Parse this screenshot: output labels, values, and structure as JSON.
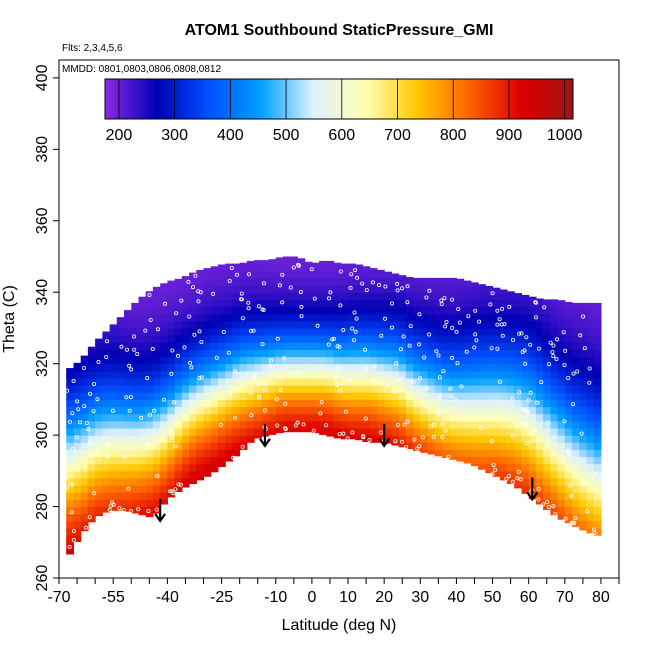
{
  "chart_data": {
    "type": "heatmap",
    "title": "ATOM1 Southbound StaticPressure_GMI",
    "annotations": {
      "flights": "Flts: 2,3,4,5,6",
      "dates": "MMDD: 0801,0803,0806,0808,0812"
    },
    "xlabel": "Latitude (deg N)",
    "ylabel": "Theta (C)",
    "xlim": [
      -70,
      85
    ],
    "ylim": [
      260,
      405
    ],
    "x_tick_labels": [
      "-70",
      "-55",
      "-40",
      "-25",
      "-10",
      "0",
      "10",
      "20",
      "30",
      "40",
      "50",
      "60",
      "70",
      "80"
    ],
    "x_ticks": [
      -70,
      -55,
      -40,
      -25,
      -10,
      0,
      10,
      20,
      30,
      40,
      50,
      60,
      70,
      80
    ],
    "y_ticks": [
      260,
      280,
      300,
      320,
      340,
      360,
      380,
      400
    ],
    "y_tick_labels": [
      "260",
      "280",
      "300",
      "320",
      "340",
      "360",
      "380",
      "400"
    ],
    "colorbar": {
      "min": 175,
      "max": 1015,
      "ticks": [
        200,
        300,
        400,
        500,
        600,
        700,
        800,
        900,
        1000
      ],
      "tick_labels": [
        "200",
        "300",
        "400",
        "500",
        "600",
        "700",
        "800",
        "900",
        "1000"
      ],
      "colors": [
        "#8a2be2",
        "#0000b4",
        "#0050ff",
        "#00a0ff",
        "#dcf0ff",
        "#ffffb4",
        "#ffc800",
        "#ff6400",
        "#dc0000",
        "#a01414"
      ]
    },
    "profile": {
      "latitude": [
        -68,
        -64,
        -60,
        -56,
        -52,
        -48,
        -44,
        -40,
        -36,
        -32,
        -28,
        -24,
        -20,
        -16,
        -12,
        -8,
        -4,
        0,
        4,
        8,
        12,
        16,
        20,
        24,
        28,
        32,
        36,
        40,
        44,
        48,
        52,
        56,
        60,
        64,
        68,
        72,
        76,
        79
      ],
      "theta_bottom": [
        265,
        272,
        277,
        279,
        279,
        278,
        277,
        282,
        285,
        287,
        289,
        292,
        295,
        299,
        300,
        301,
        301,
        301,
        300,
        299,
        299,
        298,
        298,
        297,
        296,
        295,
        294,
        293,
        292,
        290,
        288,
        286,
        283,
        280,
        277,
        275,
        273,
        272
      ],
      "theta_top": [
        318,
        321,
        326,
        330,
        334,
        338,
        341,
        343,
        344,
        346,
        347,
        348,
        348,
        349,
        349,
        350,
        350,
        348,
        349,
        348,
        348,
        347,
        346,
        345,
        344,
        344,
        344,
        344,
        343,
        342,
        341,
        340,
        339,
        338,
        338,
        337,
        337,
        337
      ],
      "theta_mid": [
        292,
        294,
        297,
        298,
        298,
        298,
        299,
        302,
        306,
        309,
        311,
        313,
        315,
        316,
        317,
        318,
        318,
        318,
        318,
        317,
        317,
        317,
        316,
        315,
        312,
        310,
        308,
        307,
        307,
        307,
        307,
        306,
        304,
        300,
        296,
        292,
        289,
        287
      ],
      "half_width": [
        30,
        30,
        29,
        29,
        28,
        27,
        27,
        26,
        25,
        24,
        24,
        23,
        23,
        22,
        21,
        20,
        20,
        20,
        20,
        21,
        22,
        22,
        23,
        24,
        25,
        26,
        27,
        28,
        29,
        30,
        30,
        31,
        32,
        33,
        33,
        34,
        35,
        35
      ]
    },
    "arrows": [
      {
        "latitude": -42,
        "theta": 276
      },
      {
        "latitude": -13,
        "theta": 297
      },
      {
        "latitude": 20,
        "theta": 297
      },
      {
        "latitude": 61,
        "theta": 282
      }
    ]
  }
}
